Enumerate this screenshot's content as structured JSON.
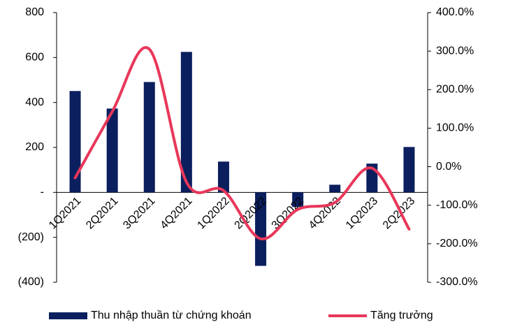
{
  "chart_data": {
    "type": "bar_line",
    "categories": [
      "1Q2021",
      "2Q2021",
      "3Q2021",
      "4Q2021",
      "1Q2022",
      "2Q2022",
      "3Q2022",
      "4Q2022",
      "1Q2023",
      "2Q2023"
    ],
    "series": [
      {
        "name": "Thu nhập thuần từ chứng khoán",
        "type": "bar",
        "color": "#0b1f5e",
        "values": [
          451,
          373,
          491,
          625,
          137,
          -327,
          -65,
          34,
          128,
          202
        ]
      },
      {
        "name": "Tăng trưởng",
        "type": "line",
        "axis": "y2",
        "color": "#e8375a",
        "values": [
          -29,
          143,
          305,
          -40,
          -62,
          -187,
          -111,
          -93,
          -4,
          -162
        ]
      }
    ],
    "ylim": [
      -400,
      800
    ],
    "yticks": [
      {
        "value": -400,
        "label": "(400)"
      },
      {
        "value": -200,
        "label": "(200)"
      },
      {
        "value": 0,
        "label": "-"
      },
      200,
      400,
      600,
      800
    ],
    "y2lim": [
      -300,
      400
    ],
    "y2ticks": [
      {
        "value": -300,
        "label": "-300.0%"
      },
      {
        "value": -200,
        "label": "-200.0%"
      },
      {
        "value": -100,
        "label": "-100.0%"
      },
      {
        "value": 0,
        "label": "0.0%"
      },
      {
        "value": 100,
        "label": "100.0%"
      },
      {
        "value": 200,
        "label": "200.0%"
      },
      {
        "value": 300,
        "label": "300.0%"
      },
      {
        "value": 400,
        "label": "400.0%"
      }
    ],
    "legend": "bottom"
  }
}
